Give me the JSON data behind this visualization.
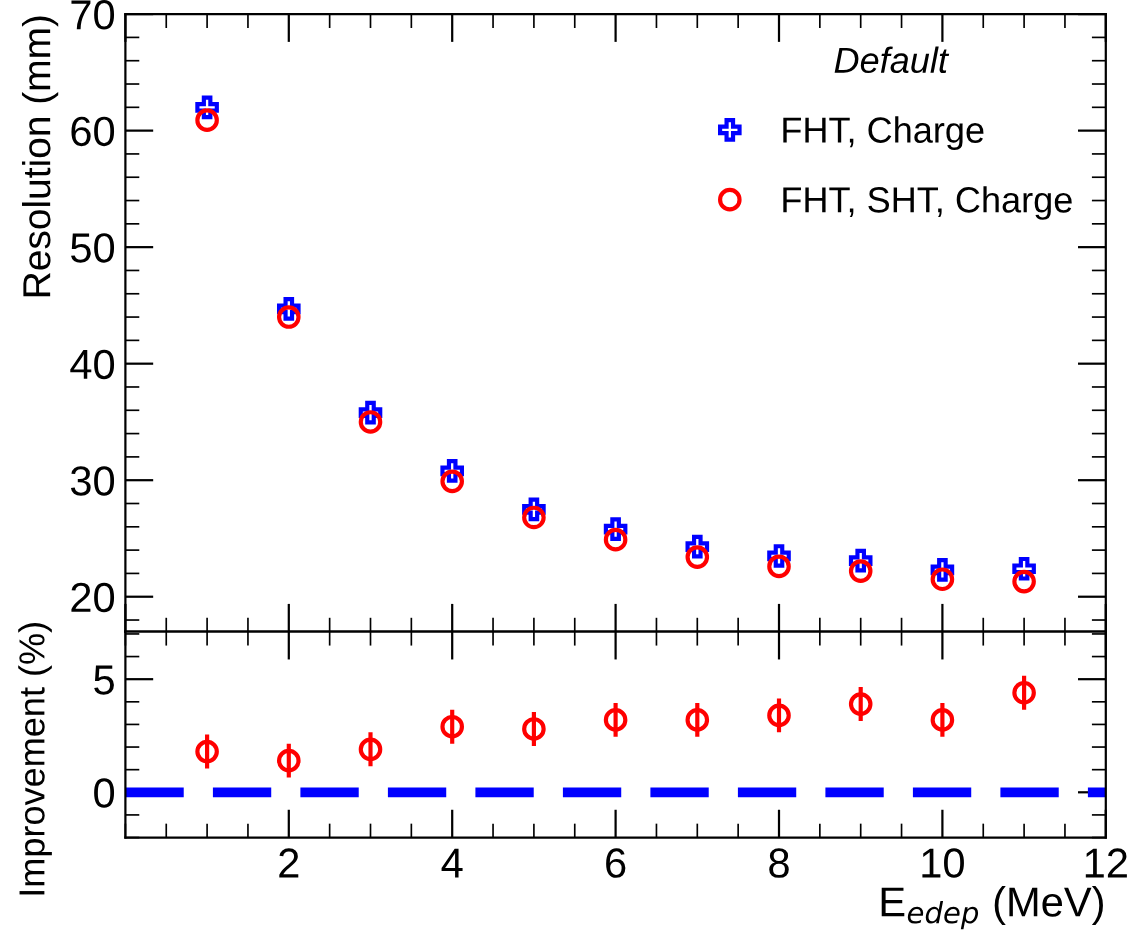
{
  "chart_data": [
    {
      "type": "scatter",
      "ylabel": "Resolution (mm)",
      "legend_title": "Default",
      "legend": "top right",
      "grid": false,
      "tick_labels": "y",
      "xlim": [
        0,
        12
      ],
      "ylim": [
        17,
        70
      ],
      "xticks": [
        0,
        2,
        4,
        6,
        8,
        10,
        12
      ],
      "yticks": [
        20,
        30,
        40,
        50,
        60,
        70
      ],
      "x": [
        1,
        2,
        3,
        4,
        5,
        6,
        7,
        8,
        9,
        10,
        11
      ],
      "series": [
        {
          "name": "FHT, Charge",
          "color": "#0000ff",
          "marker": "cross",
          "values": [
            62.0,
            44.7,
            35.8,
            30.8,
            27.5,
            25.8,
            24.3,
            23.5,
            23.1,
            22.3,
            22.4
          ]
        },
        {
          "name": "FHT, SHT, Charge",
          "color": "#ff0000",
          "marker": "circle",
          "values": [
            60.9,
            44.0,
            35.0,
            29.9,
            26.8,
            24.9,
            23.4,
            22.6,
            22.2,
            21.5,
            21.3
          ]
        }
      ]
    },
    {
      "type": "scatter",
      "ylabel": "Improvement (%)",
      "xlabel": "E$_{edep}$ (MeV)",
      "grid": false,
      "legend": false,
      "xlim": [
        0,
        12
      ],
      "ylim": [
        -2,
        7.1
      ],
      "xticks": [
        2,
        4,
        6,
        8,
        10,
        12
      ],
      "yticks": [
        0,
        5
      ],
      "x": [
        1,
        2,
        3,
        4,
        5,
        6,
        7,
        8,
        9,
        10,
        11
      ],
      "ref_lines": [
        {
          "axis": "y",
          "value": 0,
          "color": "#0000ff",
          "line_style": "dashed"
        }
      ],
      "series": [
        {
          "color": "#ff0000",
          "marker": "circle",
          "values": [
            1.8,
            1.4,
            1.9,
            2.9,
            2.8,
            3.2,
            3.2,
            3.4,
            3.9,
            3.2,
            4.4
          ],
          "errors": [
            0.75,
            0.75,
            0.75,
            0.75,
            0.75,
            0.75,
            0.75,
            0.75,
            0.75,
            0.75,
            0.75
          ]
        }
      ]
    }
  ]
}
